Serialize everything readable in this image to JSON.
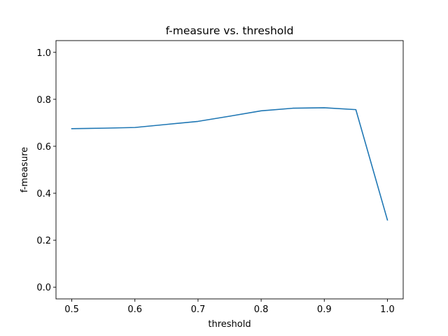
{
  "chart_data": {
    "type": "line",
    "title": "f-measure vs. threshold",
    "xlabel": "threshold",
    "ylabel": "f-measure",
    "xlim": [
      0.475,
      1.025
    ],
    "ylim": [
      -0.05,
      1.05
    ],
    "xticks": [
      0.5,
      0.6,
      0.7,
      0.8,
      0.9,
      1.0
    ],
    "xtick_labels": [
      "0.5",
      "0.6",
      "0.7",
      "0.8",
      "0.9",
      "1.0"
    ],
    "yticks": [
      0.0,
      0.2,
      0.4,
      0.6,
      0.8,
      1.0
    ],
    "ytick_labels": [
      "0.0",
      "0.2",
      "0.4",
      "0.6",
      "0.8",
      "1.0"
    ],
    "grid": false,
    "series": [
      {
        "color": "#1f77b4",
        "x": [
          0.5,
          0.55,
          0.6,
          0.65,
          0.7,
          0.75,
          0.8,
          0.85,
          0.9,
          0.95,
          1.0
        ],
        "y": [
          0.675,
          0.677,
          0.68,
          0.693,
          0.706,
          0.728,
          0.751,
          0.762,
          0.764,
          0.756,
          0.286
        ]
      }
    ]
  }
}
